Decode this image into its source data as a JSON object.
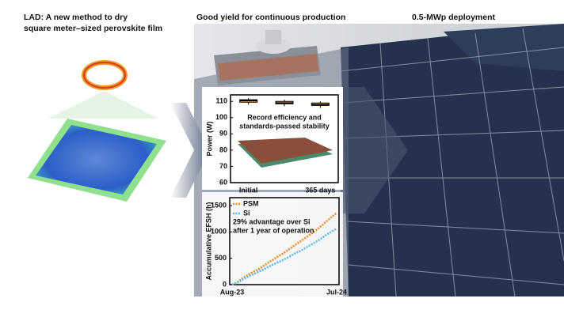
{
  "panels": [
    {
      "title_lines": [
        "LAD: A new method to dry",
        "square meter–sized perovskite film"
      ]
    },
    {
      "title": "Good yield for continuous production"
    },
    {
      "title": "0.5-MWp deployment"
    }
  ],
  "chart_data": [
    {
      "type": "box",
      "ylabel": "Power (W)",
      "categories": [
        "Initial",
        null,
        "365 days"
      ],
      "series": [
        {
          "color": "#f0a040",
          "min": [
            108,
            107,
            106
          ],
          "q1": [
            109.5,
            108.5,
            107.5
          ],
          "median": [
            110.5,
            109,
            108
          ],
          "q3": [
            111,
            110,
            109
          ],
          "max": [
            112,
            111,
            110
          ]
        }
      ],
      "ylim": [
        60,
        114
      ],
      "yticks": [
        60,
        70,
        80,
        90,
        100,
        110
      ],
      "annotation_lines": [
        "Record efficiency and",
        "standards-passed stability"
      ]
    },
    {
      "type": "line",
      "ylabel": "Accumulative EFSH (h)",
      "categories": [
        "Aug-23",
        null,
        null,
        null,
        null,
        null,
        null,
        null,
        null,
        null,
        null,
        null,
        null,
        null,
        null,
        null,
        null,
        null,
        null,
        null,
        null,
        null,
        null,
        "Jul-24"
      ],
      "series": [
        {
          "name": "PSM",
          "color": "#f08a24",
          "values": [
            0,
            40,
            100,
            160,
            210,
            260,
            300,
            360,
            420,
            470,
            530,
            580,
            640,
            700,
            760,
            820,
            880,
            940,
            1000,
            1070,
            1140,
            1220,
            1290,
            1360
          ]
        },
        {
          "name": "Si",
          "color": "#5ab8ea",
          "values": [
            0,
            30,
            80,
            130,
            170,
            210,
            250,
            290,
            340,
            380,
            420,
            460,
            500,
            550,
            600,
            640,
            690,
            740,
            790,
            840,
            900,
            960,
            1010,
            1060
          ]
        }
      ],
      "ylim": [
        0,
        1650
      ],
      "yticks": [
        0,
        500,
        1000,
        1500
      ],
      "legend": "upper left",
      "annotation_lines": [
        "29% advantage over Si",
        "after 1 year of operation"
      ]
    }
  ]
}
